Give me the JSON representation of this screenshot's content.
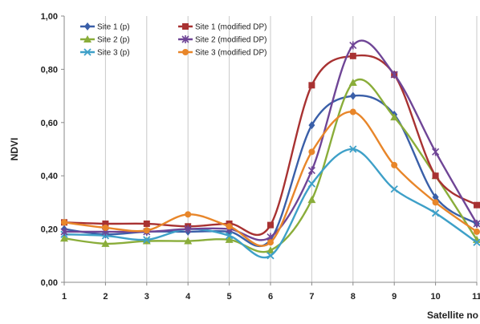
{
  "chart_data": {
    "type": "line",
    "title": "",
    "xlabel": "Satellite no",
    "ylabel": "NDVI",
    "x": [
      1,
      2,
      3,
      4,
      5,
      6,
      7,
      8,
      9,
      10,
      11
    ],
    "x_tick_labels": [
      "1",
      "2",
      "3",
      "4",
      "5",
      "6",
      "7",
      "8",
      "9",
      "10",
      "11"
    ],
    "ylim": [
      0,
      1
    ],
    "y_ticks": [
      0,
      0.2,
      0.4,
      0.6,
      0.8,
      1.0
    ],
    "y_tick_labels": [
      "0,00",
      "0,20",
      "0,40",
      "0,60",
      "0,80",
      "1,00"
    ],
    "grid": {
      "horizontal": false,
      "vertical": true
    },
    "legend_position": "top-left",
    "series": [
      {
        "name": "Site 1 (p)",
        "color": "#3a5fa8",
        "marker": "diamond",
        "values": [
          0.2,
          0.18,
          0.19,
          0.19,
          0.19,
          0.16,
          0.59,
          0.7,
          0.63,
          0.32,
          0.22
        ]
      },
      {
        "name": "Site 2 (p)",
        "color": "#8aad3a",
        "marker": "triangle",
        "values": [
          0.165,
          0.145,
          0.155,
          0.155,
          0.16,
          0.12,
          0.31,
          0.75,
          0.62,
          0.4,
          0.16
        ]
      },
      {
        "name": "Site 3 (p)",
        "color": "#3ea0c8",
        "marker": "x",
        "values": [
          0.18,
          0.175,
          0.16,
          0.2,
          0.175,
          0.1,
          0.37,
          0.5,
          0.35,
          0.26,
          0.15
        ]
      },
      {
        "name": "Site 1 (modified DP)",
        "color": "#a83232",
        "marker": "square",
        "values": [
          0.225,
          0.22,
          0.22,
          0.21,
          0.22,
          0.215,
          0.74,
          0.85,
          0.78,
          0.4,
          0.29
        ]
      },
      {
        "name": "Site 2 (modified DP)",
        "color": "#6f4596",
        "marker": "star",
        "values": [
          0.19,
          0.19,
          0.19,
          0.2,
          0.2,
          0.17,
          0.42,
          0.89,
          0.78,
          0.49,
          0.22
        ]
      },
      {
        "name": "Site 3 (modified DP)",
        "color": "#e8862a",
        "marker": "circle",
        "values": [
          0.225,
          0.205,
          0.195,
          0.255,
          0.21,
          0.15,
          0.49,
          0.64,
          0.44,
          0.3,
          0.19
        ]
      }
    ]
  }
}
